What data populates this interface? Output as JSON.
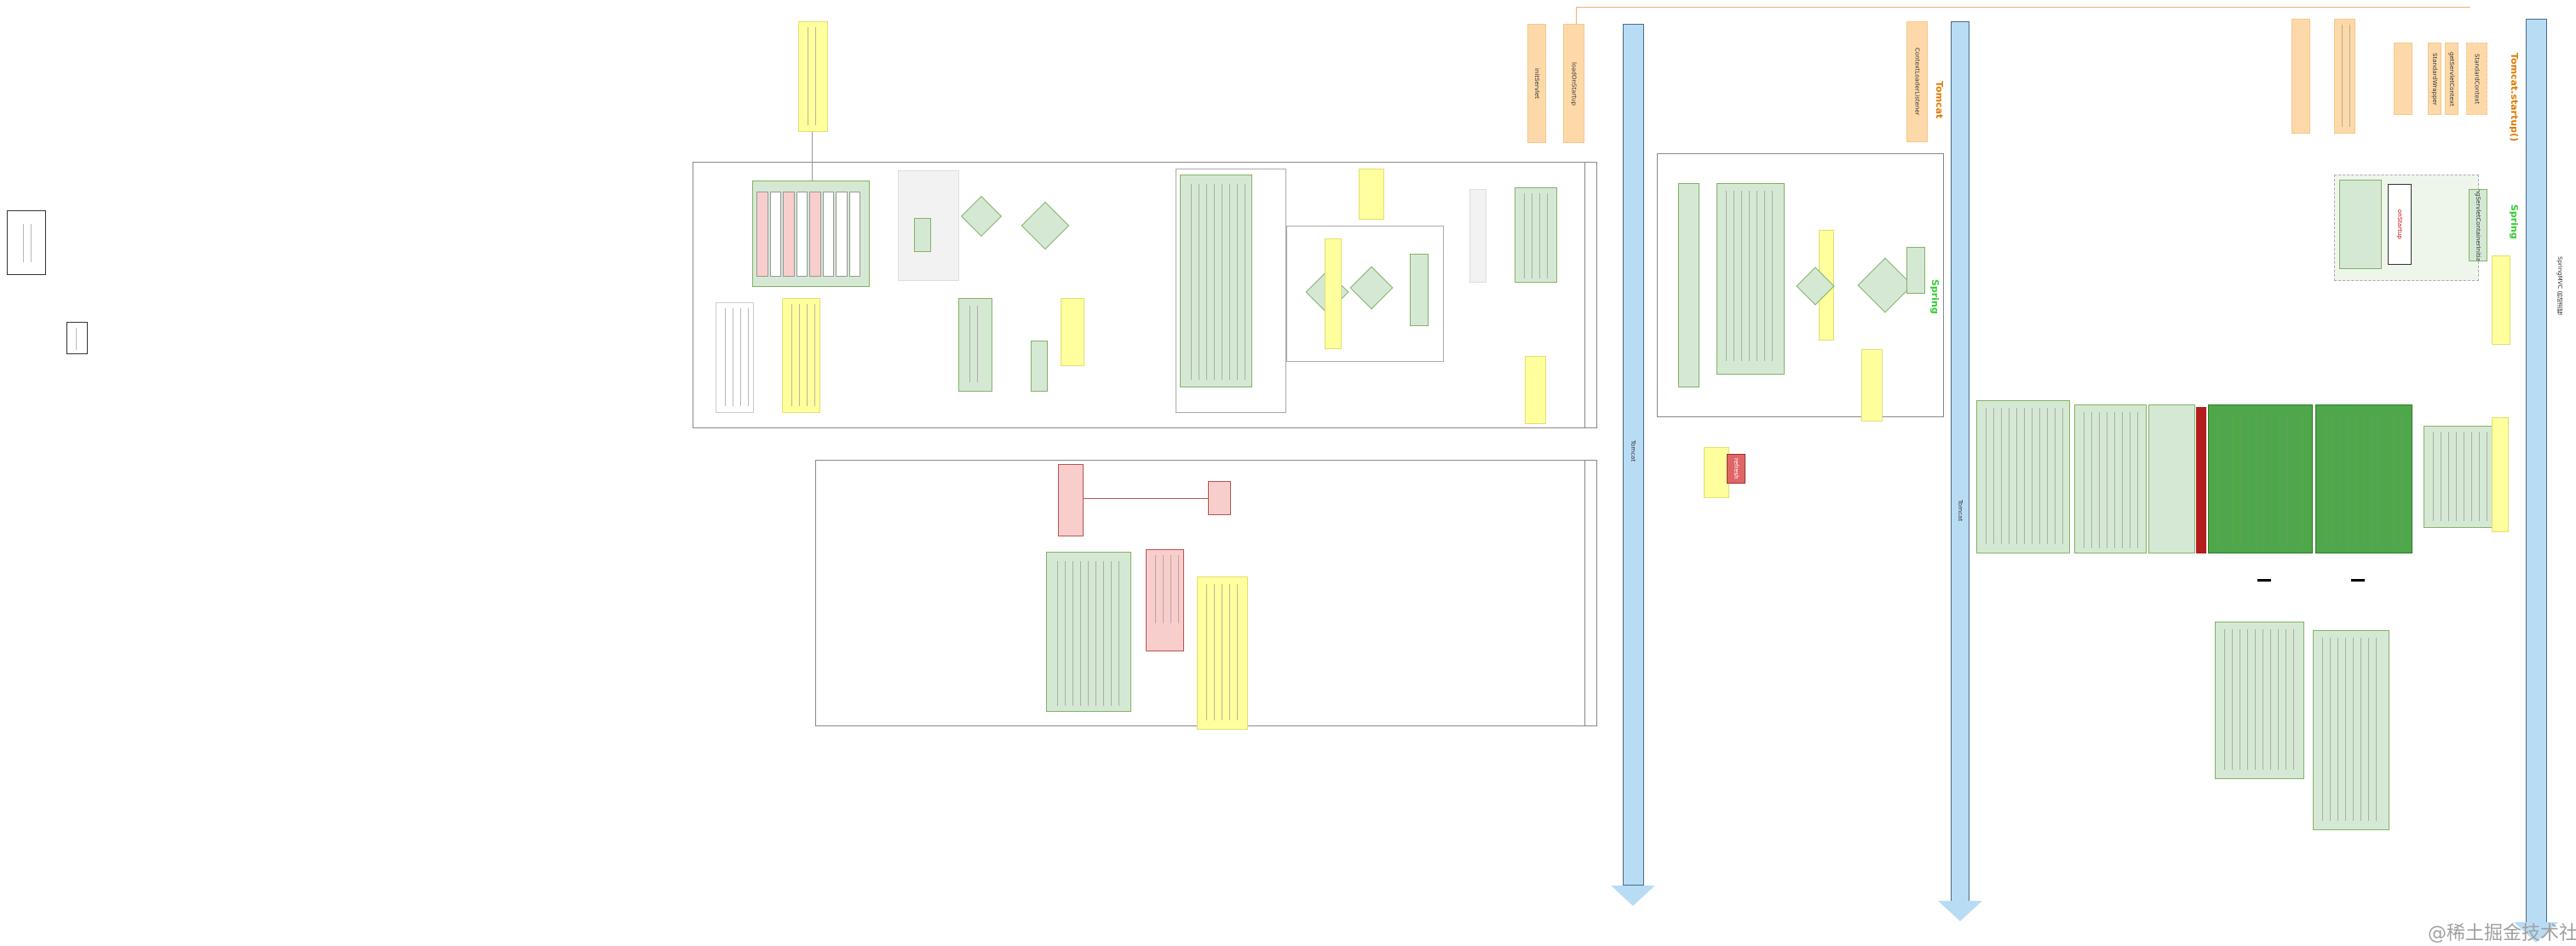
{
  "title": "SpringMVC 启动流程",
  "lanes": [
    {
      "label": "Tomcat",
      "color": "#b9dcf5"
    },
    {
      "label": "Tomcat",
      "color": "#b9dcf5"
    },
    {
      "label": "Tomcat.startup()",
      "color": "#b9dcf5"
    }
  ],
  "section_labels": {
    "tomcat_startup": "Tomcat.startup()",
    "tomcat": "Tomcat",
    "spring_top": "Spring",
    "spring_mid": "Spring"
  },
  "nodes": {
    "standard_context": "StandardContext",
    "get_servlet_context": "getServletContext",
    "standard_wrapper": "StandardWrapper",
    "load_on_startup": "loadOnStartup",
    "init_servlet": "initServlet",
    "context_loader_listener": "ContextLoaderListener",
    "spring_servlet_container_initializer": "SpringServletContainerInitializer",
    "on_startup": "onStartup",
    "refresh": "refresh"
  },
  "colors": {
    "tomcat_node": "#fdd9a9",
    "spring_node": "#d5e8d4",
    "note": "#ffff9e",
    "highlight": "#f8cecc",
    "lane": "#b9dcf5",
    "tomcat_label": "#e07b00",
    "spring_label": "#33cc33"
  },
  "watermark": "@稀土掘金技术社区"
}
